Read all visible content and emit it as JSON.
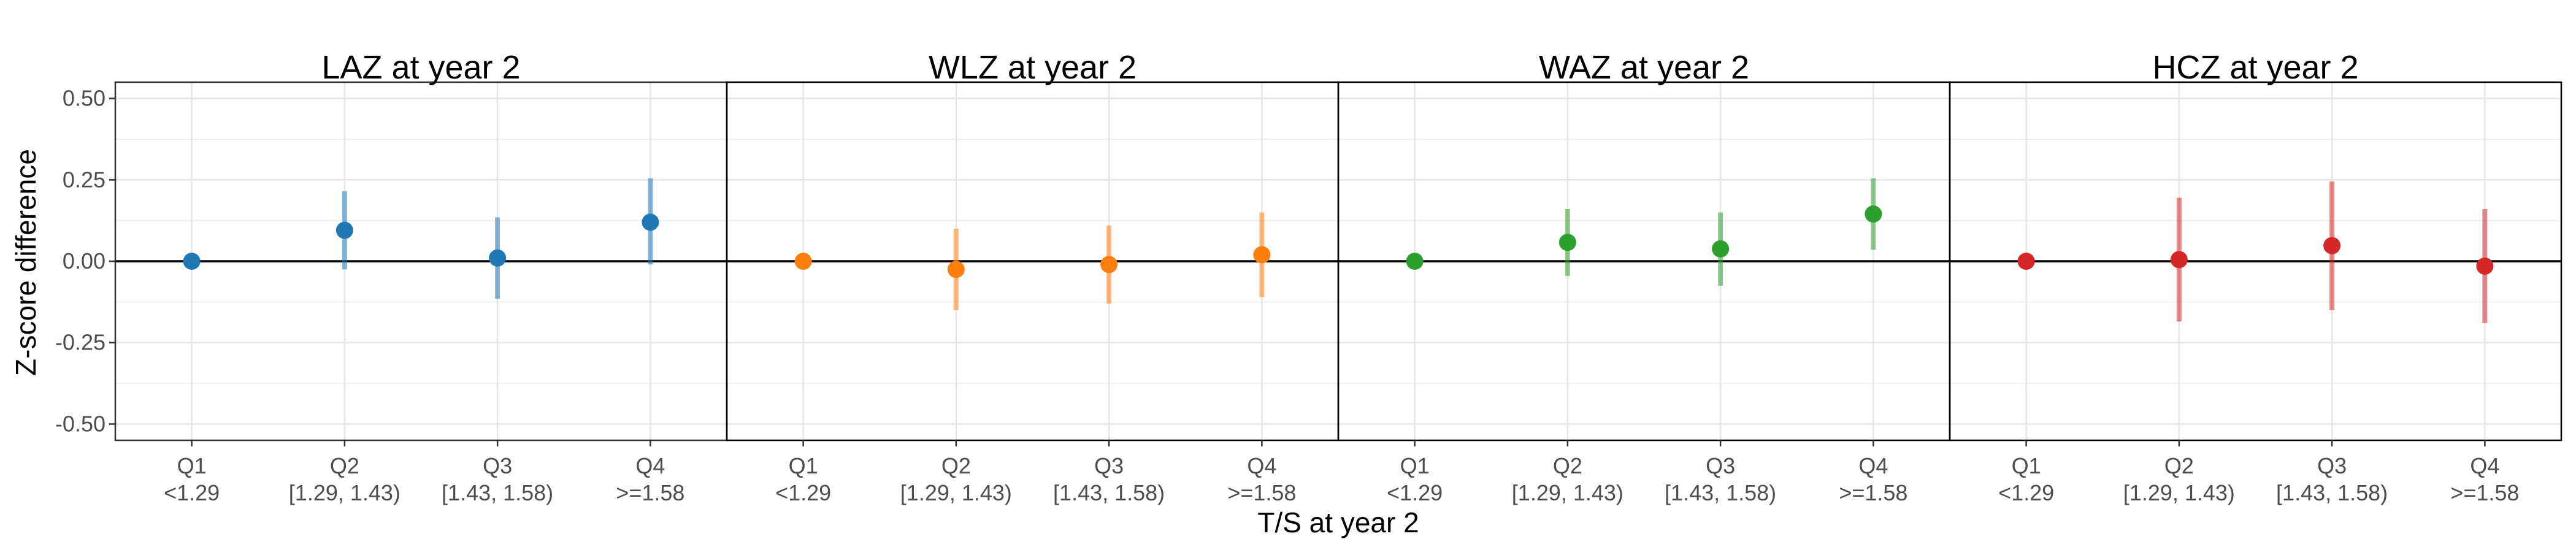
{
  "chart_data": {
    "type": "scatter",
    "subtype": "faceted point estimates with confidence intervals",
    "xlabel": "T/S at year 2",
    "ylabel": "Z-score difference",
    "ylim": [
      -0.55,
      0.55
    ],
    "yticks": [
      "0.50",
      "0.25",
      "0.00",
      "-0.25",
      "-0.50"
    ],
    "ytick_values": [
      0.5,
      0.25,
      0,
      -0.25,
      -0.5
    ],
    "categories": [
      "Q1",
      "Q2",
      "Q3",
      "Q4"
    ],
    "category_ranges": [
      "<1.29",
      "[1.29, 1.43)",
      "[1.43, 1.58)",
      ">=1.58"
    ],
    "reference_line": 0,
    "grid": true,
    "legend": "none",
    "panels": [
      {
        "title": "LAZ at year 2",
        "color": "#1f77b4",
        "estimates": [
          0.0,
          0.095,
          0.01,
          0.12
        ],
        "ci_lower": [
          null,
          -0.025,
          -0.115,
          -0.01
        ],
        "ci_upper": [
          null,
          0.215,
          0.135,
          0.255
        ]
      },
      {
        "title": "WLZ at year 2",
        "color": "#ff7f0e",
        "estimates": [
          0.0,
          -0.025,
          -0.01,
          0.02
        ],
        "ci_lower": [
          null,
          -0.15,
          -0.13,
          -0.11
        ],
        "ci_upper": [
          null,
          0.1,
          0.11,
          0.15
        ]
      },
      {
        "title": "WAZ at year 2",
        "color": "#2ca02c",
        "estimates": [
          0.0,
          0.058,
          0.038,
          0.145
        ],
        "ci_lower": [
          null,
          -0.045,
          -0.075,
          0.035
        ],
        "ci_upper": [
          null,
          0.16,
          0.15,
          0.255
        ]
      },
      {
        "title": "HCZ at year 2",
        "color": "#d62728",
        "estimates": [
          0.0,
          0.005,
          0.048,
          -0.015
        ],
        "ci_lower": [
          null,
          -0.185,
          -0.15,
          -0.19
        ],
        "ci_upper": [
          null,
          0.195,
          0.245,
          0.16
        ]
      }
    ]
  }
}
